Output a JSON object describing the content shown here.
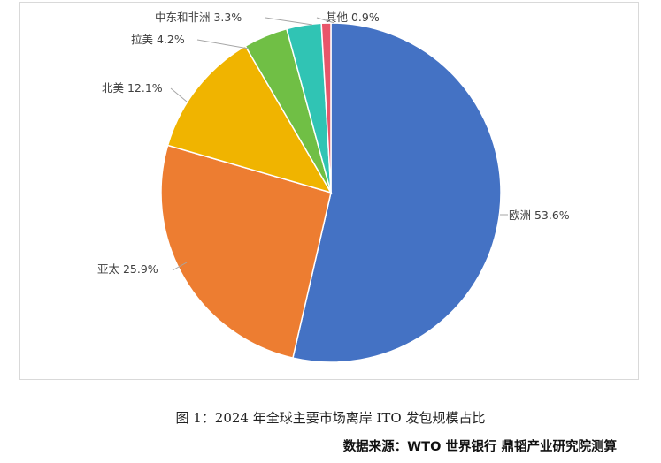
{
  "chart_data": {
    "type": "pie",
    "categories": [
      "欧洲",
      "亚太",
      "北美",
      "拉美",
      "中东和非洲",
      "其他"
    ],
    "values": [
      53.6,
      25.9,
      12.1,
      4.2,
      3.3,
      0.9
    ],
    "labels": [
      "欧洲 53.6%",
      "亚太 25.9%",
      "北美 12.1%",
      "拉美 4.2%",
      "中东和非洲 3.3%",
      "其他 0.9%"
    ],
    "colors": [
      "#4472C4",
      "#ED7D31",
      "#F0B400",
      "#70BF45",
      "#30C4B4",
      "#E8566A"
    ],
    "title": ""
  },
  "caption": "图 1：2024 年全球主要市场离岸 ITO 发包规模占比",
  "source": "数据来源：WTO 世界银行 鼎韬产业研究院测算"
}
